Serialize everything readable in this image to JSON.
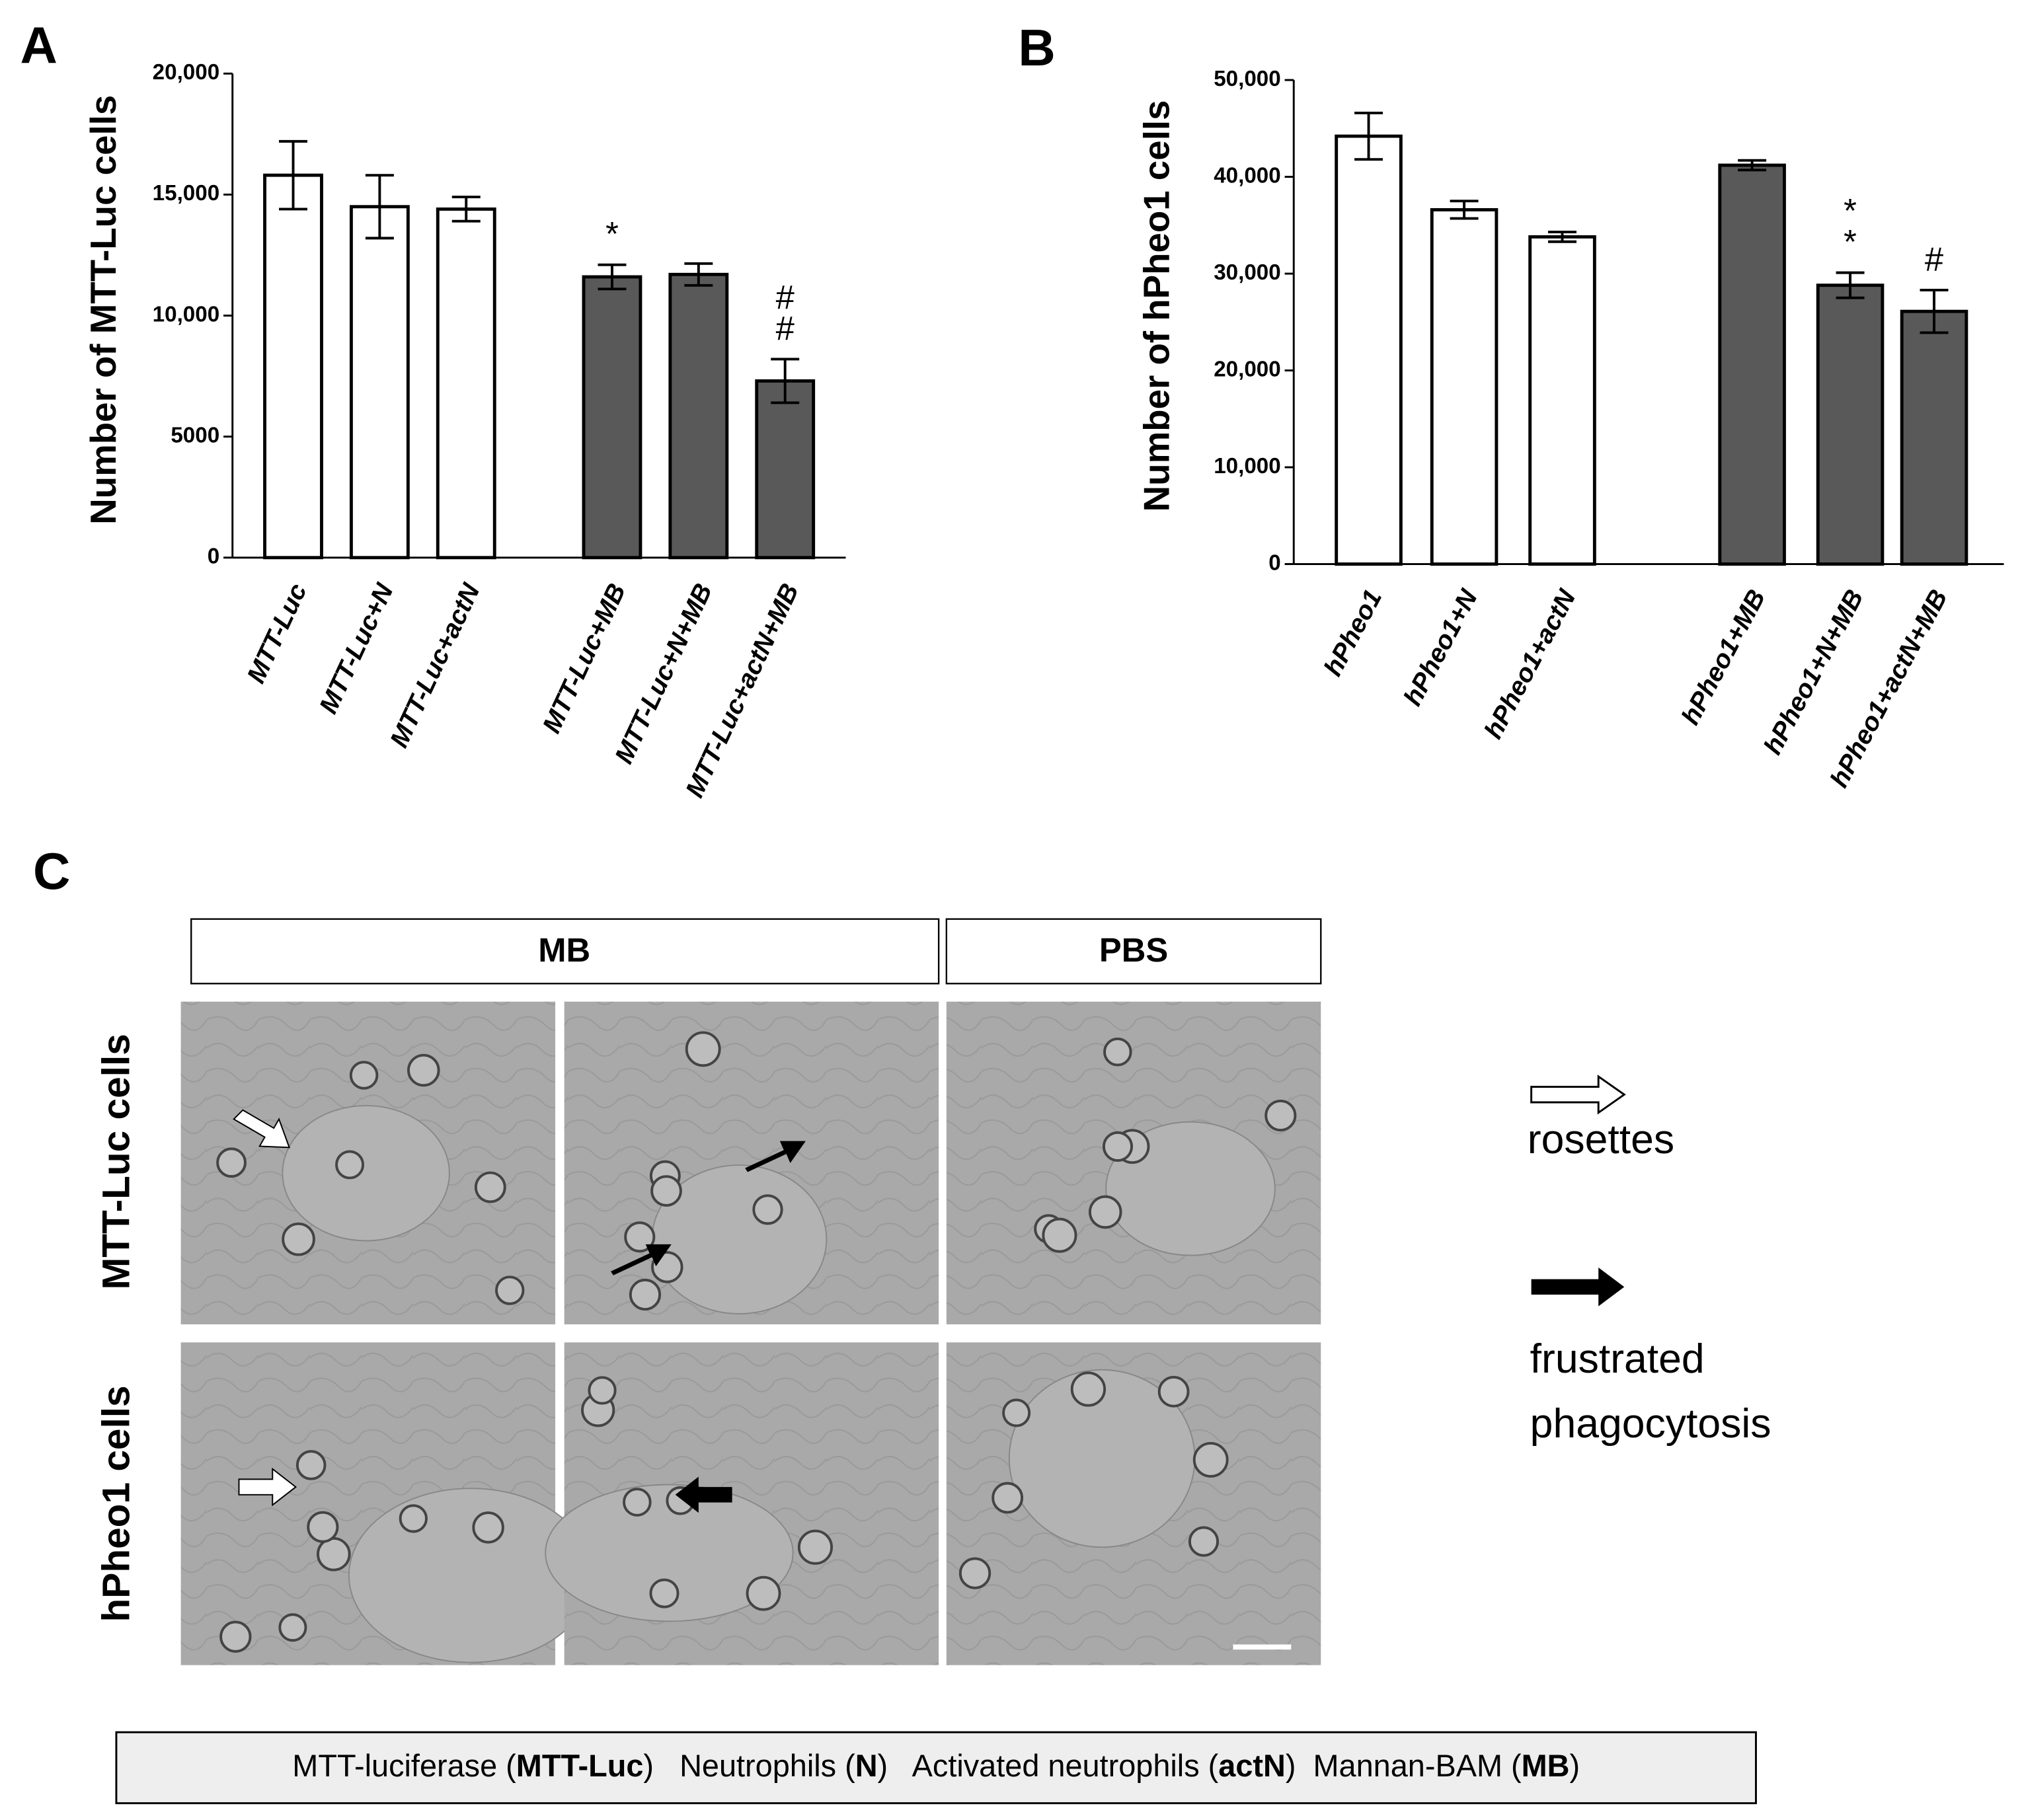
{
  "chart_data": [
    {
      "type": "bar",
      "panel": "A",
      "ylabel": "Number of MTT-Luc cells",
      "categories": [
        "MTT-Luc",
        "MTT-Luc+N",
        "MTT-Luc+actN",
        "MTT-Luc+MB",
        "MTT-Luc+N+MB",
        "MTT-Luc+actN+MB"
      ],
      "values": [
        15800,
        14500,
        14400,
        11600,
        11700,
        7300
      ],
      "errors": [
        1400,
        1300,
        500,
        500,
        450,
        900
      ],
      "colors": [
        "#ffffff",
        "#ffffff",
        "#ffffff",
        "#595959",
        "#595959",
        "#595959"
      ],
      "annotations": [
        [],
        [],
        [],
        [
          "*"
        ],
        [],
        [
          "#",
          "#"
        ]
      ],
      "ylim": [
        0,
        20000
      ],
      "yticks": [
        0,
        5000,
        {
          "value": 10000,
          "label": "10,000"
        },
        {
          "value": 15000,
          "label": "15,000"
        },
        {
          "value": 20000,
          "label": "20,000"
        }
      ]
    },
    {
      "type": "bar",
      "panel": "B",
      "ylabel": "Number of hPheo1 cells",
      "categories": [
        "hPheo1",
        "hPheo1+N",
        "hPheo1+actN",
        "hPheo1+MB",
        "hPheo1+N+MB",
        "hPheo1+actN+MB"
      ],
      "values": [
        44200,
        36600,
        33800,
        41200,
        28800,
        26100
      ],
      "errors": [
        2400,
        900,
        500,
        500,
        1300,
        2200
      ],
      "colors": [
        "#ffffff",
        "#ffffff",
        "#ffffff",
        "#595959",
        "#595959",
        "#595959"
      ],
      "annotations": [
        [],
        [],
        [],
        [],
        [
          "*",
          "*"
        ],
        [
          "#"
        ]
      ],
      "ylim": [
        0,
        50000
      ],
      "yticks": [
        0,
        {
          "value": 10000,
          "label": "10,000"
        },
        {
          "value": 20000,
          "label": "20,000"
        },
        {
          "value": 30000,
          "label": "30,000"
        },
        {
          "value": 40000,
          "label": "40,000"
        },
        {
          "value": 50000,
          "label": "50,000"
        }
      ]
    }
  ],
  "panel_c": {
    "label": "C",
    "headers": [
      "MB",
      "PBS"
    ],
    "rows": [
      "MTT-Luc cells",
      "hPheo1 cells"
    ],
    "legend": [
      {
        "lines": [
          "rosettes"
        ]
      },
      {
        "lines": [
          "frustrated",
          "phagocytosis"
        ]
      }
    ]
  },
  "footer": [
    "MTT-luciferase (",
    "MTT-Luc",
    ")   Neutrophils (",
    "N",
    ")   Activated neutrophils (",
    "actN",
    ")  Mannan-BAM (",
    "MB",
    ")"
  ]
}
